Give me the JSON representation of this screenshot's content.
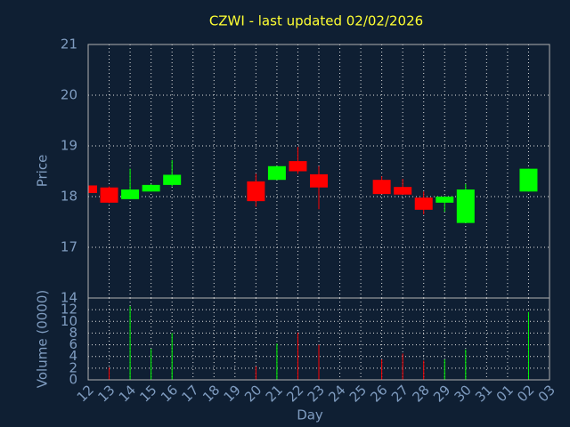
{
  "chart_data": [
    {
      "type": "candlestick",
      "title": "CZWI - last updated 02/02/2026",
      "y_label": "Price",
      "categories": [
        "12",
        "13",
        "14",
        "15",
        "16",
        "17",
        "18",
        "19",
        "20",
        "21",
        "22",
        "23",
        "24",
        "25",
        "26",
        "27",
        "28",
        "29",
        "30",
        "31",
        "01",
        "02",
        "03"
      ],
      "series": [
        {
          "name": "CZWI",
          "up_color": "#00ff00",
          "down_color": "#ff0000",
          "open": [
            18.22,
            18.18,
            17.95,
            18.1,
            18.23,
            null,
            null,
            null,
            18.3,
            18.33,
            18.7,
            18.44,
            null,
            null,
            18.33,
            18.19,
            17.98,
            17.88,
            17.48,
            null,
            null,
            18.1,
            null
          ],
          "high": [
            18.22,
            18.2,
            18.55,
            18.25,
            18.72,
            null,
            null,
            null,
            18.45,
            18.6,
            18.98,
            18.6,
            null,
            null,
            18.4,
            18.35,
            18.1,
            18.0,
            18.25,
            null,
            null,
            18.55,
            null
          ],
          "low": [
            18.07,
            17.87,
            17.95,
            18.1,
            18.2,
            null,
            null,
            null,
            17.8,
            18.33,
            18.45,
            17.75,
            null,
            null,
            18.05,
            18.04,
            17.65,
            17.7,
            17.48,
            null,
            null,
            18.1,
            null
          ],
          "close": [
            18.07,
            17.88,
            18.14,
            18.23,
            18.43,
            null,
            null,
            null,
            17.91,
            18.6,
            18.5,
            18.18,
            null,
            null,
            18.05,
            18.04,
            17.74,
            18.0,
            18.14,
            null,
            null,
            18.55,
            null
          ]
        }
      ],
      "ylim": [
        16,
        21
      ],
      "yticks": [
        17,
        18,
        19,
        20,
        21
      ],
      "grid": true
    },
    {
      "type": "bar",
      "y_label": "Volume (0000)",
      "x_label": "Day",
      "categories": [
        "12",
        "13",
        "14",
        "15",
        "16",
        "17",
        "18",
        "19",
        "20",
        "21",
        "22",
        "23",
        "24",
        "25",
        "26",
        "27",
        "28",
        "29",
        "30",
        "31",
        "01",
        "02",
        "03"
      ],
      "values": [
        0,
        2.1,
        12.6,
        5.3,
        8,
        null,
        null,
        null,
        2.3,
        6.2,
        8.1,
        6,
        null,
        null,
        3.5,
        4.5,
        3.3,
        3.5,
        5.2,
        null,
        null,
        11.6,
        null
      ],
      "colors": [
        "#ff0000",
        "#ff0000",
        "#00ff00",
        "#00ff00",
        "#00ff00",
        null,
        null,
        null,
        "#ff0000",
        "#00ff00",
        "#ff0000",
        "#ff0000",
        null,
        null,
        "#ff0000",
        "#ff0000",
        "#ff0000",
        "#00ff00",
        "#00ff00",
        null,
        null,
        "#00ff00",
        null
      ],
      "ylim": [
        0,
        14
      ],
      "yticks": [
        0,
        2,
        4,
        6,
        8,
        10,
        12,
        14
      ],
      "grid": true
    }
  ]
}
